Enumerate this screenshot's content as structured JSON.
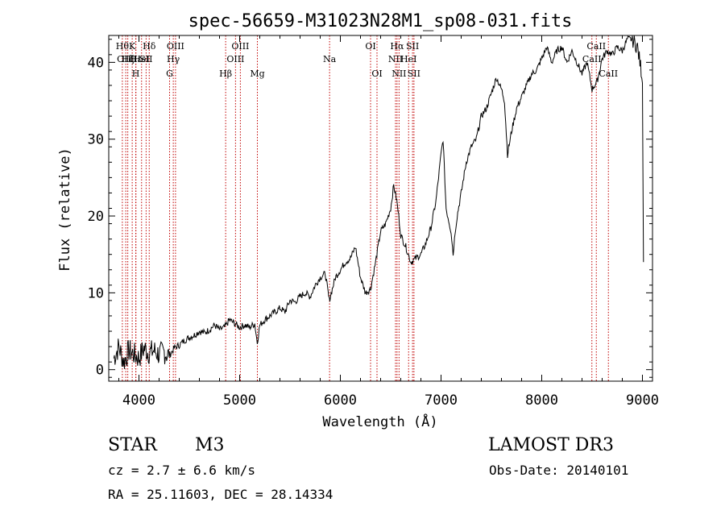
{
  "chart_data": {
    "type": "line",
    "title": "spec-56659-M31023N28M1_sp08-031.fits",
    "xlabel": "Wavelength (Å)",
    "ylabel": "Flux (relative)",
    "xlim": [
      3700,
      9100
    ],
    "ylim": [
      -1.5,
      43.5
    ],
    "xticks": [
      4000,
      5000,
      6000,
      7000,
      8000,
      9000
    ],
    "xtick_labels": [
      "4000",
      "5000",
      "6000",
      "7000",
      "8000",
      "9000"
    ],
    "yticks": [
      0,
      10,
      20,
      30,
      40
    ],
    "ytick_labels": [
      "0",
      "10",
      "20",
      "30",
      "40"
    ],
    "grid": false,
    "series": [
      {
        "name": "flux",
        "x": [
          3750,
          3800,
          3850,
          3900,
          3950,
          4000,
          4050,
          4100,
          4150,
          4200,
          4250,
          4300,
          4350,
          4400,
          4450,
          4500,
          4550,
          4600,
          4650,
          4700,
          4750,
          4800,
          4850,
          4900,
          4950,
          5000,
          5050,
          5100,
          5150,
          5175,
          5200,
          5250,
          5300,
          5350,
          5400,
          5450,
          5500,
          5550,
          5600,
          5650,
          5700,
          5750,
          5800,
          5850,
          5890,
          5950,
          6000,
          6050,
          6100,
          6150,
          6200,
          6250,
          6300,
          6350,
          6400,
          6450,
          6500,
          6530,
          6560,
          6580,
          6600,
          6650,
          6700,
          6750,
          6800,
          6850,
          6900,
          6950,
          7000,
          7020,
          7050,
          7100,
          7120,
          7140,
          7160,
          7200,
          7250,
          7300,
          7350,
          7400,
          7450,
          7500,
          7550,
          7600,
          7630,
          7660,
          7700,
          7750,
          7800,
          7850,
          7900,
          7950,
          8000,
          8050,
          8100,
          8150,
          8200,
          8250,
          8300,
          8350,
          8400,
          8450,
          8500,
          8550,
          8600,
          8650,
          8700,
          8750,
          8800,
          8850,
          8900,
          8950,
          9000,
          9010
        ],
        "y": [
          1.5,
          3.0,
          1.0,
          2.5,
          2.0,
          1.5,
          2.8,
          2.2,
          2.5,
          2.0,
          2.3,
          1.8,
          2.8,
          3.2,
          3.8,
          4.2,
          4.5,
          5.0,
          4.8,
          5.2,
          5.8,
          5.2,
          5.5,
          6.5,
          6.0,
          5.5,
          5.8,
          5.5,
          6.0,
          3.5,
          5.8,
          6.5,
          7.0,
          7.5,
          8.0,
          7.5,
          9.0,
          8.8,
          9.5,
          10.0,
          9.5,
          11.0,
          12.0,
          12.5,
          9.0,
          12.0,
          13.0,
          14.0,
          14.5,
          16.0,
          12.0,
          10.0,
          10.5,
          14.0,
          18.0,
          19.0,
          21.0,
          24.0,
          22.0,
          20.0,
          17.5,
          16.0,
          14.0,
          14.5,
          15.0,
          16.5,
          18.5,
          22.0,
          28.0,
          30.0,
          21.0,
          18.0,
          15.0,
          18.0,
          20.0,
          23.0,
          27.0,
          29.0,
          30.0,
          33.0,
          34.0,
          36.0,
          38.0,
          36.5,
          35.0,
          28.0,
          31.0,
          34.0,
          35.5,
          37.0,
          38.5,
          39.0,
          40.5,
          42.0,
          40.0,
          41.5,
          42.0,
          40.0,
          41.5,
          40.0,
          38.5,
          40.0,
          36.5,
          37.5,
          40.5,
          41.5,
          41.0,
          42.0,
          41.5,
          43.0,
          43.0,
          42.0,
          38.0,
          14.0
        ]
      }
    ],
    "lines": [
      {
        "x": 3835,
        "label": "Hθ",
        "row": 1
      },
      {
        "x": 3869,
        "label": "OIII",
        "row": 2
      },
      {
        "x": 3889,
        "label": "Hζ",
        "row": 2
      },
      {
        "x": 3933,
        "label": "K",
        "row": 1
      },
      {
        "x": 3968,
        "label": "H",
        "row": 3
      },
      {
        "x": 3970,
        "label": "Hε",
        "row": 2
      },
      {
        "x": 4026,
        "label": "HeI",
        "row": 2
      },
      {
        "x": 4071,
        "label": "SII",
        "row": 2
      },
      {
        "x": 4102,
        "label": "Hδ",
        "row": 1
      },
      {
        "x": 4304,
        "label": "G",
        "row": 3
      },
      {
        "x": 4341,
        "label": "Hγ",
        "row": 2
      },
      {
        "x": 4363,
        "label": "OIII",
        "row": 1
      },
      {
        "x": 4861,
        "label": "Hβ",
        "row": 3
      },
      {
        "x": 4959,
        "label": "OIII",
        "row": 2
      },
      {
        "x": 5007,
        "label": "OIII",
        "row": 1
      },
      {
        "x": 5176,
        "label": "Mg",
        "row": 3
      },
      {
        "x": 5893,
        "label": "Na",
        "row": 2
      },
      {
        "x": 6300,
        "label": "OI",
        "row": 1
      },
      {
        "x": 6364,
        "label": "OI",
        "row": 3
      },
      {
        "x": 6548,
        "label": "NII",
        "row": 2
      },
      {
        "x": 6563,
        "label": "Hα",
        "row": 1
      },
      {
        "x": 6583,
        "label": "NII",
        "row": 3
      },
      {
        "x": 6678,
        "label": "HeI",
        "row": 2
      },
      {
        "x": 6717,
        "label": "SII",
        "row": 1
      },
      {
        "x": 6731,
        "label": "SII",
        "row": 3
      },
      {
        "x": 8498,
        "label": "CaII",
        "row": 2
      },
      {
        "x": 8542,
        "label": "CaII",
        "row": 1
      },
      {
        "x": 8662,
        "label": "CaII",
        "row": 3
      }
    ]
  },
  "info": {
    "object_class": "STAR",
    "subclass": "M3",
    "survey": "LAMOST DR3",
    "cz": "cz = 2.7 ± 6.6 km/s",
    "obs_date": "Obs-Date: 20140101",
    "coords": "RA =  25.11603, DEC =  28.14334"
  }
}
